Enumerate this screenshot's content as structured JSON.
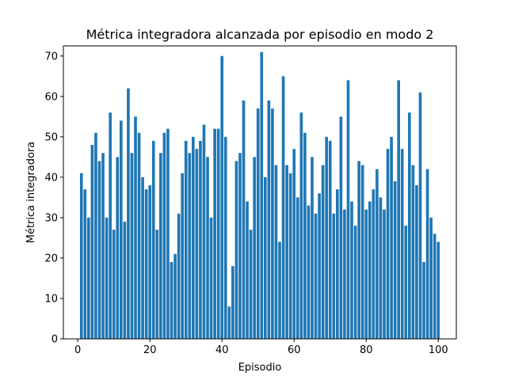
{
  "chart_data": {
    "type": "bar",
    "title": "Métrica integradora alcanzada por episodio en modo 2",
    "xlabel": "Episodio",
    "ylabel": "Métrica integradora",
    "x": [
      1,
      2,
      3,
      4,
      5,
      6,
      7,
      8,
      9,
      10,
      11,
      12,
      13,
      14,
      15,
      16,
      17,
      18,
      19,
      20,
      21,
      22,
      23,
      24,
      25,
      26,
      27,
      28,
      29,
      30,
      31,
      32,
      33,
      34,
      35,
      36,
      37,
      38,
      39,
      40,
      41,
      42,
      43,
      44,
      45,
      46,
      47,
      48,
      49,
      50,
      51,
      52,
      53,
      54,
      55,
      56,
      57,
      58,
      59,
      60,
      61,
      62,
      63,
      64,
      65,
      66,
      67,
      68,
      69,
      70,
      71,
      72,
      73,
      74,
      75,
      76,
      77,
      78,
      79,
      80,
      81,
      82,
      83,
      84,
      85,
      86,
      87,
      88,
      89,
      90,
      91,
      92,
      93,
      94,
      95,
      96,
      97,
      98,
      99,
      100
    ],
    "values": [
      41,
      37,
      30,
      48,
      51,
      44,
      46,
      30,
      56,
      27,
      45,
      54,
      29,
      62,
      46,
      55,
      51,
      40,
      37,
      38,
      49,
      27,
      46,
      51,
      52,
      19,
      21,
      31,
      41,
      49,
      46,
      50,
      47,
      49,
      53,
      45,
      30,
      52,
      52,
      70,
      50,
      8,
      18,
      44,
      46,
      59,
      34,
      27,
      45,
      57,
      71,
      40,
      59,
      57,
      43,
      24,
      65,
      43,
      41,
      47,
      35,
      56,
      51,
      33,
      45,
      31,
      36,
      43,
      50,
      49,
      31,
      37,
      55,
      32,
      64,
      34,
      28,
      44,
      43,
      32,
      34,
      37,
      42,
      35,
      32,
      47,
      50,
      39,
      64,
      47,
      28,
      56,
      43,
      38,
      61,
      19,
      42,
      30,
      26,
      24
    ],
    "xlim": [
      -4,
      105
    ],
    "ylim": [
      0,
      72.5
    ],
    "xticks": [
      "0",
      "20",
      "40",
      "60",
      "80",
      "100"
    ],
    "yticks": [
      "0",
      "10",
      "20",
      "30",
      "40",
      "50",
      "60",
      "70"
    ],
    "bar_color": "#1f77b4",
    "grid": false,
    "legend": "none"
  }
}
